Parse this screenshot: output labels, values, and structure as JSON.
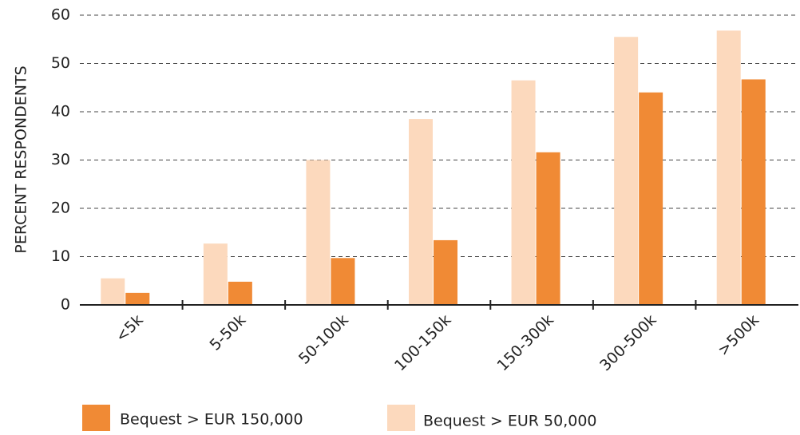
{
  "chart_data": {
    "type": "bar",
    "ylabel": "PERCENT RESPONDENTS",
    "categories": [
      "<5k",
      "5-50k",
      "50-100k",
      "100-150k",
      "150-300k",
      "300-500k",
      ">500k"
    ],
    "series": [
      {
        "name": "Bequest > EUR 150,000",
        "color": "#f08a35",
        "values": [
          2.5,
          4.8,
          9.7,
          13.4,
          31.6,
          44,
          46.7
        ]
      },
      {
        "name": "Bequest > EUR 50,000",
        "color": "#fcd9bd",
        "values": [
          5.5,
          12.7,
          30,
          38.5,
          46.5,
          55.5,
          56.8
        ]
      }
    ],
    "ylim": [
      0,
      60
    ],
    "yticks": [
      0,
      10,
      20,
      30,
      40,
      50,
      60
    ],
    "grid": true
  }
}
